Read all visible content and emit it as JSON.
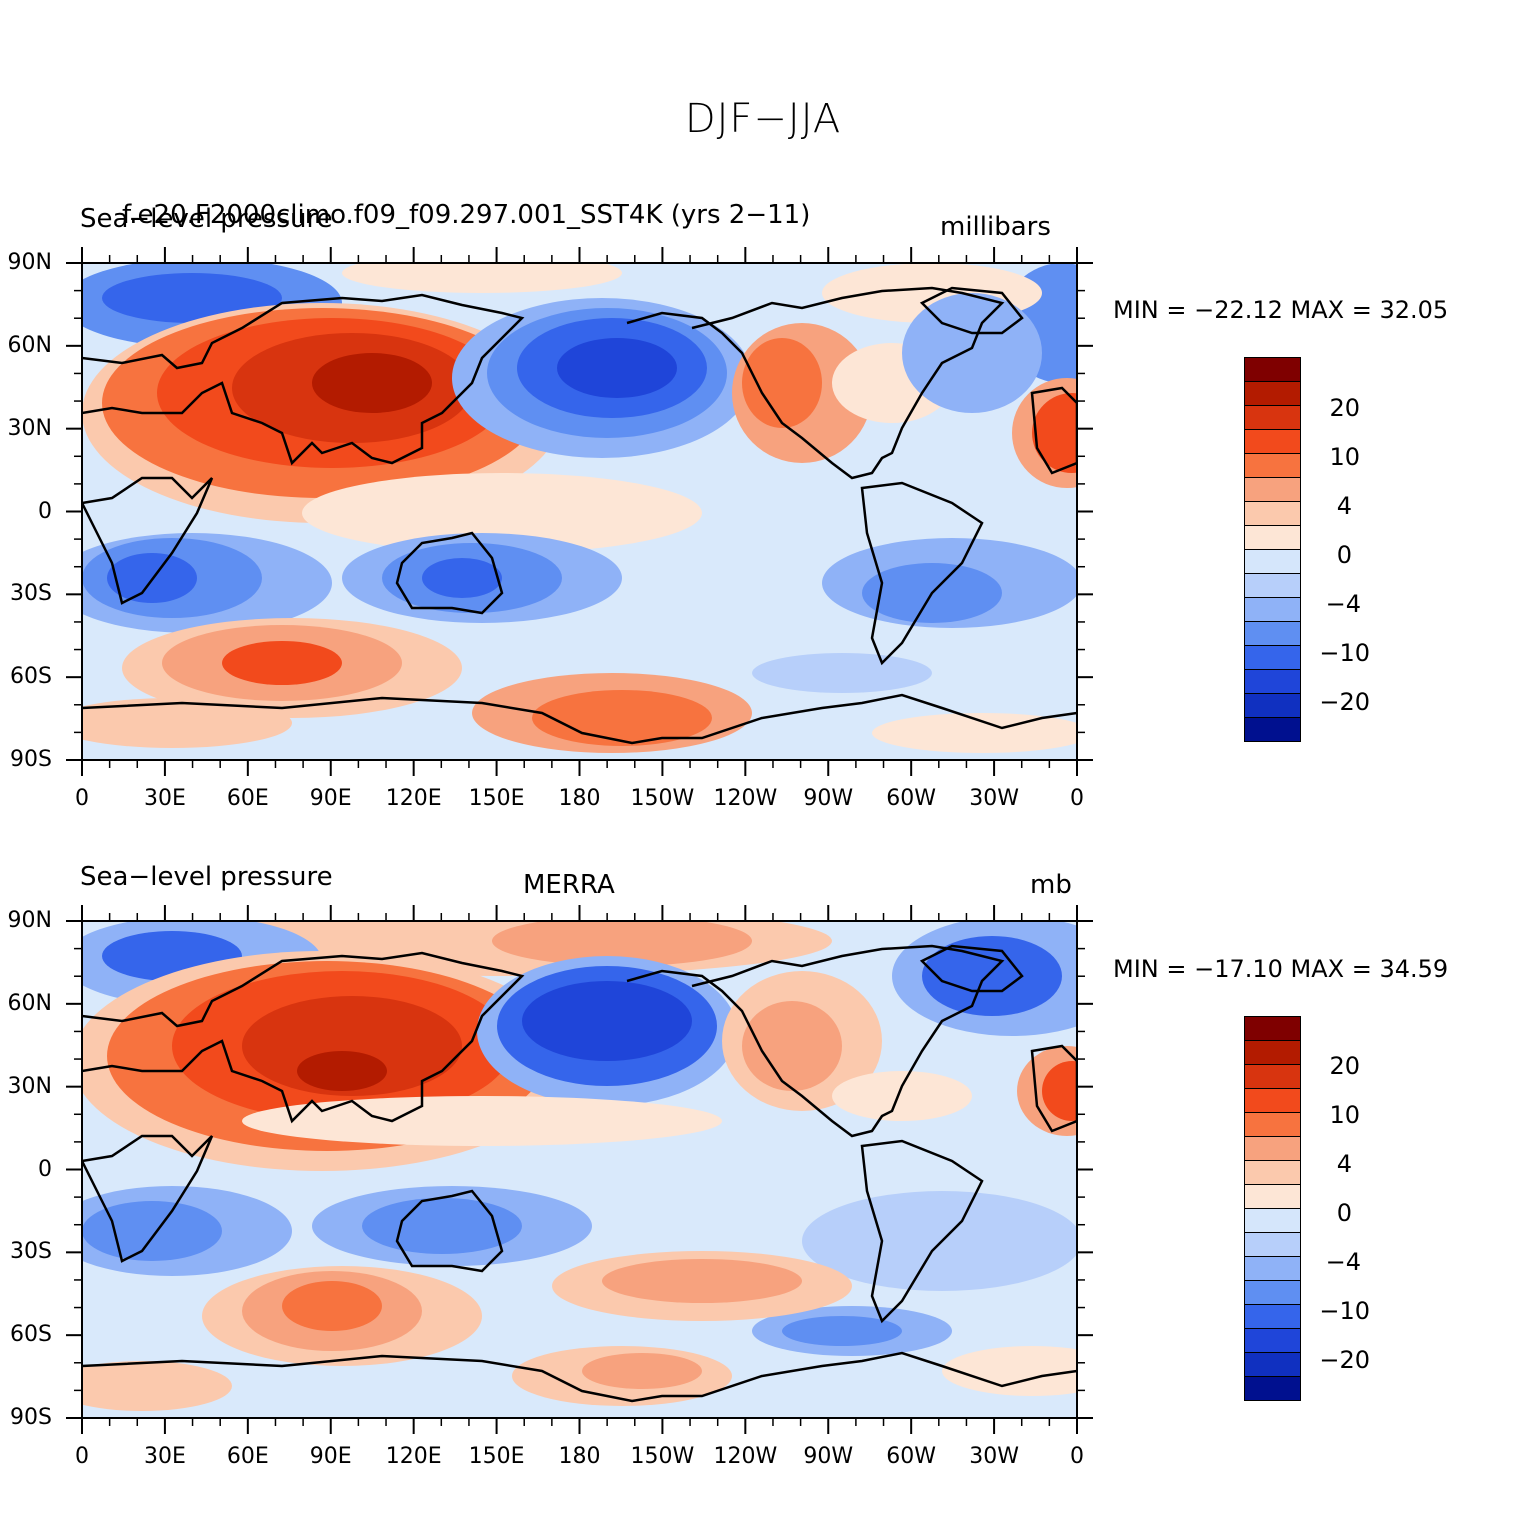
{
  "main_title": "DJF−JJA",
  "panels": [
    {
      "left_title": "Sea−level pressure",
      "center_title": "f.e20.F2000climo.f09_f09.297.001_SST4K (yrs 2−11)",
      "units": "millibars",
      "min_max": "MIN = −22.12  MAX =   32.05"
    },
    {
      "left_title": "Sea−level pressure",
      "center_title": "MERRA",
      "units": "mb",
      "min_max": "MIN = −17.10  MAX =   34.59"
    }
  ],
  "lat_labels": [
    "90N",
    "60N",
    "30N",
    "0",
    "30S",
    "60S",
    "90S"
  ],
  "lon_labels": [
    "0",
    "30E",
    "60E",
    "90E",
    "120E",
    "150E",
    "180",
    "150W",
    "120W",
    "90W",
    "60W",
    "30W",
    "0"
  ],
  "colorbar": {
    "tick_labels": [
      "20",
      "10",
      "4",
      "0",
      "−4",
      "−10",
      "−20"
    ],
    "colors": [
      "#7f0000",
      "#b31b00",
      "#d8340f",
      "#f24a1c",
      "#f7733f",
      "#f7a27e",
      "#fbc9ad",
      "#fde6d6",
      "#d5e6fb",
      "#b7cffa",
      "#8fb2f7",
      "#5f8ff2",
      "#3565eb",
      "#1f45d9",
      "#1030c0",
      "#00108f"
    ]
  },
  "map_colors": {
    "ocean_neutral": "#d9e9fb",
    "land_outline": "#000000"
  }
}
